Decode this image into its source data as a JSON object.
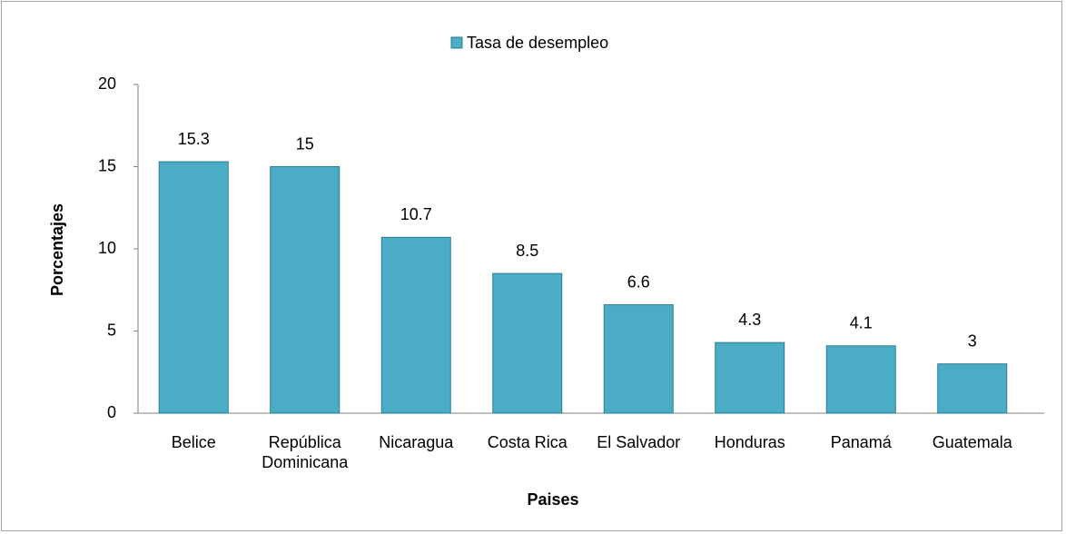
{
  "chart_data": {
    "type": "bar",
    "legend": "Tasa de desempleo",
    "y_label": "Porcentajes",
    "x_label": "Paises",
    "categories": [
      "Belice",
      "República Dominicana",
      "Nicaragua",
      "Costa Rica",
      "El Salvador",
      "Honduras",
      "Panamá",
      "Guatemala"
    ],
    "values": [
      15.3,
      15,
      10.7,
      8.5,
      6.6,
      4.3,
      4.1,
      3
    ],
    "color": "#4bacc6",
    "ylim": [
      0,
      20
    ],
    "yticks": [
      0,
      5,
      10,
      15,
      20
    ],
    "grid": false
  }
}
